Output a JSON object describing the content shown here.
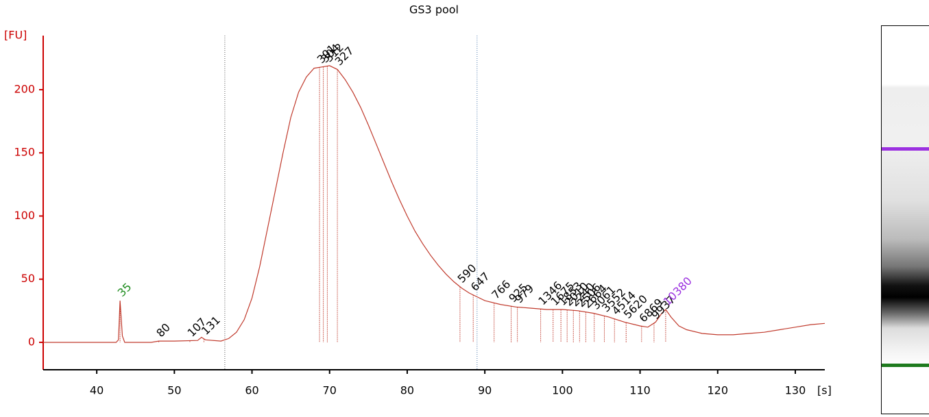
{
  "chart_data": {
    "type": "line",
    "title": "GS3 pool",
    "y_label": "[FU]",
    "x_label": "[s]",
    "color": "#c0392b",
    "axis_color": "#cc0000",
    "x": [
      33.1,
      42.5,
      42.8,
      43,
      43.3,
      43.6,
      47,
      48,
      50,
      53,
      53.5,
      54,
      56,
      57,
      58,
      59,
      60,
      61,
      62,
      63,
      64,
      65,
      66,
      67,
      68,
      69,
      70,
      71,
      72,
      73,
      74,
      75,
      76,
      77,
      78,
      79,
      80,
      81,
      82,
      83,
      84,
      85,
      86,
      87,
      88,
      89,
      90,
      92,
      94,
      96,
      98,
      100,
      102,
      104,
      106,
      108,
      110,
      111,
      112,
      112.8,
      113.3,
      114,
      115,
      116,
      118,
      120,
      122,
      124,
      126,
      128,
      130,
      132,
      133.8
    ],
    "values": [
      0,
      0,
      2,
      33,
      5,
      0,
      0,
      1,
      1,
      1.5,
      4,
      2,
      1,
      3,
      8,
      18,
      35,
      60,
      90,
      120,
      150,
      178,
      198,
      210,
      217,
      218,
      219,
      216,
      208,
      198,
      186,
      172,
      157,
      142,
      127,
      113,
      100,
      88,
      78,
      69,
      61,
      54,
      48,
      43,
      39,
      36,
      33,
      30,
      28,
      27,
      26,
      26,
      25,
      23,
      20,
      16,
      13,
      12,
      16,
      23,
      26,
      20,
      13,
      10,
      7,
      6,
      6,
      7,
      8,
      10,
      12,
      14,
      15
    ],
    "xlim": [
      33.1,
      133.8
    ],
    "ylim": [
      -21.7,
      242.8
    ],
    "xticks": [
      40,
      50,
      60,
      70,
      80,
      90,
      100,
      110,
      120,
      130
    ],
    "yticks": [
      0,
      50,
      100,
      150,
      200
    ],
    "region_x": [
      56.5,
      89
    ],
    "peak_labels": [
      "35",
      "80",
      "107",
      "131",
      "301",
      "304",
      "312",
      "327",
      "590",
      "647",
      "766",
      "925",
      "979",
      "1346",
      "1675",
      "1853",
      "2010",
      "2240",
      "2506",
      "2664",
      "3061",
      "3552",
      "4514",
      "5620",
      "6869",
      "9937",
      "10380"
    ],
    "peak_x": [
      43,
      48,
      52,
      53.8,
      68.7,
      69.2,
      69.7,
      71,
      86.8,
      88.5,
      91.2,
      93.4,
      94.2,
      97.2,
      98.8,
      99.8,
      100.6,
      101.4,
      102.2,
      103,
      104.1,
      105.4,
      106.7,
      108.2,
      110.2,
      111.8,
      113.3
    ],
    "peak_colors": [
      "#1e8c1e",
      "#000",
      "#000",
      "#000",
      "#000",
      "#000",
      "#000",
      "#000",
      "#000",
      "#000",
      "#000",
      "#000",
      "#000",
      "#000",
      "#000",
      "#000",
      "#000",
      "#000",
      "#000",
      "#000",
      "#000",
      "#000",
      "#000",
      "#000",
      "#000",
      "#000",
      "#9b30e0"
    ]
  }
}
